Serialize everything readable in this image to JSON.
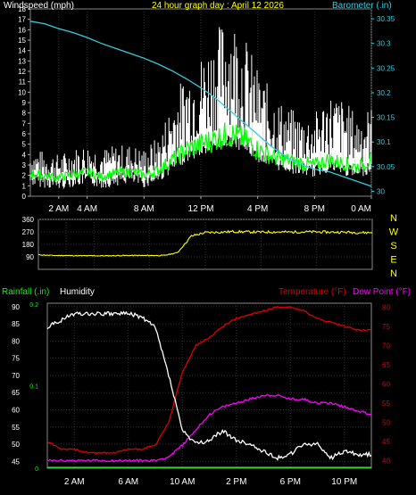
{
  "panel1": {
    "left_title": "Windspeed (mph)",
    "center_title": "24 hour graph day : April 12 2026",
    "right_title": "Barometer (.in)",
    "left_ticks": [
      "0",
      "1",
      "2",
      "3",
      "4",
      "5",
      "6",
      "7",
      "8",
      "9",
      "10",
      "11",
      "12",
      "13",
      "14",
      "15",
      "16",
      "17",
      "18"
    ],
    "right_ticks": [
      "30",
      "30.05",
      "30.1",
      "30.15",
      "30.2",
      "30.25",
      "30.3",
      "30.35"
    ],
    "x_ticks": [
      "2 AM",
      "4 AM",
      "8 AM",
      "12 PM",
      "4 PM",
      "8 PM",
      "0 AM"
    ]
  },
  "panel2": {
    "left_ticks": [
      "0",
      "90",
      "180",
      "270",
      "360"
    ],
    "compass": [
      "N",
      "W",
      "S",
      "E",
      "N"
    ]
  },
  "panel3": {
    "rain_title": "Rainfall (.in)",
    "humidity_title": "Humidity",
    "temp_title": "Temperature (°F)",
    "dew_title": "Dew Point (°F)",
    "left_ticks": [
      "45",
      "50",
      "55",
      "60",
      "65",
      "70",
      "75",
      "80",
      "85",
      "90"
    ],
    "rain_ticks": [
      "0",
      "0.1",
      "0.2"
    ],
    "right_ticks": [
      "40",
      "45",
      "50",
      "55",
      "60",
      "65",
      "70",
      "75",
      "80"
    ],
    "x_ticks": [
      "2 AM",
      "6 AM",
      "10 AM",
      "2 PM",
      "6 PM",
      "10 PM"
    ]
  },
  "colors": {
    "windspeed_avg": "#00ff00",
    "windspeed_gust": "#ffffff",
    "barometer": "#33ccdd",
    "direction": "#ffff00",
    "humidity": "#ffffff",
    "temperature": "#dd0000",
    "dewpoint": "#ff00ff",
    "rainfall": "#00ff00"
  },
  "chart_data": [
    {
      "type": "line",
      "xlabel": "",
      "ylabel": "Windspeed (mph)",
      "ylim": [
        0,
        18
      ],
      "y2label": "Barometer (.in)",
      "y2lim": [
        29.99,
        30.37
      ],
      "x_hours": [
        0,
        1,
        2,
        3,
        4,
        5,
        6,
        7,
        8,
        9,
        10,
        11,
        12,
        13,
        14,
        15,
        16,
        17,
        18,
        19,
        20,
        21,
        22,
        23,
        24
      ],
      "series": [
        {
          "name": "Windspeed (mph)",
          "axis": "left",
          "values": [
            2.2,
            2.0,
            1.8,
            2.1,
            2.3,
            1.9,
            2.2,
            2.4,
            2.0,
            2.5,
            3.5,
            4.5,
            5.0,
            5.5,
            6.0,
            5.5,
            4.5,
            3.8,
            3.5,
            3.2,
            3.0,
            3.5,
            3.2,
            2.8,
            3.5
          ]
        },
        {
          "axis": "left",
          "values": [
            3.2,
            3.0,
            2.8,
            3.2,
            3.5,
            3.2,
            3.4,
            3.5,
            3.2,
            4.0,
            6.5,
            8.5,
            9.5,
            11.0,
            12.5,
            11.0,
            8.5,
            7.0,
            6.0,
            5.5,
            5.5,
            7.0,
            6.5,
            5.5,
            6.0
          ]
        },
        {
          "name": "Barometer (.in)",
          "axis": "right",
          "values": [
            30.345,
            30.34,
            30.33,
            30.322,
            30.312,
            30.3,
            30.29,
            30.28,
            30.27,
            30.258,
            30.244,
            30.228,
            30.21,
            30.19,
            30.165,
            30.14,
            30.115,
            30.09,
            30.07,
            30.055,
            30.045,
            30.04,
            30.03,
            30.02,
            30.01
          ]
        }
      ]
    },
    {
      "type": "line",
      "ylabel": "",
      "ylim": [
        0,
        360
      ],
      "x_hours": [
        0,
        1,
        2,
        3,
        4,
        5,
        6,
        7,
        8,
        9,
        10,
        11,
        12,
        13,
        14,
        15,
        16,
        17,
        18,
        19,
        20,
        21,
        22,
        23,
        24
      ],
      "series": [
        {
          "values": [
            105,
            100,
            100,
            98,
            98,
            98,
            100,
            100,
            100,
            100,
            120,
            240,
            265,
            268,
            272,
            270,
            268,
            270,
            268,
            270,
            270,
            268,
            268,
            265,
            265
          ]
        }
      ]
    },
    {
      "type": "line",
      "ylabel": "Humidity",
      "ylim": [
        43,
        91
      ],
      "y2label": "Temperature (°F)",
      "y2lim": [
        38,
        81
      ],
      "x_hours": [
        0,
        1,
        2,
        3,
        4,
        5,
        6,
        7,
        8,
        9,
        10,
        11,
        12,
        13,
        14,
        15,
        16,
        17,
        18,
        19,
        20,
        21,
        22,
        23,
        24
      ],
      "series": [
        {
          "name": "Humidity",
          "axis": "left",
          "values": [
            84,
            86,
            88,
            88,
            88,
            88,
            88,
            87,
            84,
            70,
            54,
            50,
            51,
            54,
            51,
            50,
            48,
            46,
            47,
            50,
            50,
            46,
            48,
            47,
            47
          ]
        },
        {
          "name": "Temperature (°F)",
          "axis": "right",
          "values": [
            45,
            43,
            43,
            42,
            42,
            42,
            43,
            43,
            44,
            50,
            63,
            70,
            72,
            75,
            77,
            78,
            79,
            80,
            80,
            79,
            77,
            76,
            75,
            74,
            74
          ]
        },
        {
          "name": "Dew Point (°F)",
          "axis": "right",
          "values": [
            40,
            40,
            40,
            40,
            40,
            40,
            40,
            40,
            40,
            41,
            44,
            48,
            52,
            54,
            55,
            56,
            57,
            57,
            56,
            56,
            55,
            55,
            54,
            53,
            52
          ]
        },
        {
          "name": "Rainfall (.in)",
          "axis": "rain",
          "values": [
            0,
            0,
            0,
            0,
            0,
            0,
            0,
            0,
            0,
            0,
            0,
            0,
            0,
            0,
            0,
            0,
            0,
            0,
            0,
            0,
            0,
            0,
            0,
            0,
            0
          ]
        }
      ]
    }
  ]
}
